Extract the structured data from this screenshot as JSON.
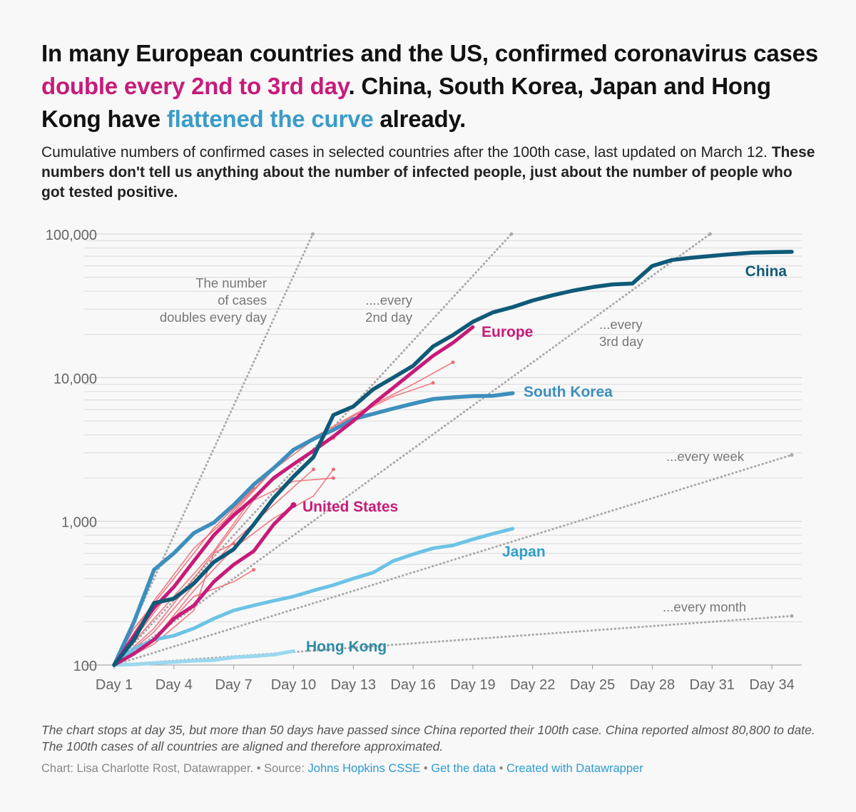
{
  "header": {
    "title_part1": "In many European countries and the US, confirmed coronavirus cases ",
    "title_highlight1": "double every 2nd to 3rd day",
    "title_part2": ". China, South Korea, Japan and Hong Kong have ",
    "title_highlight2": "flattened the curve",
    "title_part3": " already.",
    "subtitle_plain": "Cumulative numbers of confirmed cases in selected countries after the 100th case, last updated on March 12. ",
    "subtitle_bold": "These numbers don't tell us anything about the number of infected people, just about the number of people who got tested positive."
  },
  "colors": {
    "pink": "#c71b79",
    "pink_light": "#ee6b75",
    "china": "#0f5a78",
    "south_korea": "#3d8fbd",
    "japan": "#6cc3e6",
    "hong_kong": "#9ad8ef",
    "reference": "#aaaaaa",
    "grid": "#dadada"
  },
  "chart_data": {
    "type": "line",
    "x_scale": "linear",
    "y_scale": "log",
    "xlim": [
      1,
      35
    ],
    "ylim": [
      100,
      100000
    ],
    "x_ticks": [
      1,
      4,
      7,
      10,
      13,
      16,
      19,
      22,
      25,
      28,
      31,
      34
    ],
    "x_tick_labels": [
      "Day 1",
      "Day 4",
      "Day 7",
      "Day 10",
      "Day 13",
      "Day 16",
      "Day 19",
      "Day 22",
      "Day 25",
      "Day 28",
      "Day 31",
      "Day 34"
    ],
    "y_ticks": [
      100,
      1000,
      10000,
      100000
    ],
    "y_tick_labels": [
      "100",
      "1,000",
      "10,000",
      "100,000"
    ],
    "grid": true,
    "series": [
      {
        "name": "China",
        "color": "#0f5a78",
        "points": [
          [
            1,
            100
          ],
          [
            2,
            150
          ],
          [
            3,
            270
          ],
          [
            4,
            290
          ],
          [
            5,
            370
          ],
          [
            6,
            520
          ],
          [
            7,
            640
          ],
          [
            8,
            950
          ],
          [
            9,
            1450
          ],
          [
            10,
            2050
          ],
          [
            11,
            2800
          ],
          [
            12,
            5500
          ],
          [
            13,
            6300
          ],
          [
            14,
            8300
          ],
          [
            15,
            10000
          ],
          [
            16,
            12100
          ],
          [
            17,
            16500
          ],
          [
            18,
            19800
          ],
          [
            19,
            24500
          ],
          [
            20,
            28500
          ],
          [
            21,
            31000
          ],
          [
            22,
            34500
          ],
          [
            23,
            37500
          ],
          [
            24,
            40300
          ],
          [
            25,
            42700
          ],
          [
            26,
            44600
          ],
          [
            27,
            45200
          ],
          [
            28,
            60000
          ],
          [
            29,
            66000
          ],
          [
            30,
            68500
          ],
          [
            31,
            70500
          ],
          [
            32,
            72500
          ],
          [
            33,
            74200
          ],
          [
            34,
            74800
          ],
          [
            35,
            75200
          ]
        ]
      },
      {
        "name": "Europe",
        "color": "#c71b79",
        "points": [
          [
            1,
            100
          ],
          [
            2,
            160
          ],
          [
            3,
            250
          ],
          [
            4,
            350
          ],
          [
            5,
            530
          ],
          [
            6,
            800
          ],
          [
            7,
            1100
          ],
          [
            8,
            1450
          ],
          [
            9,
            2000
          ],
          [
            10,
            2500
          ],
          [
            11,
            3100
          ],
          [
            12,
            3900
          ],
          [
            13,
            5000
          ],
          [
            14,
            6600
          ],
          [
            15,
            8500
          ],
          [
            16,
            11000
          ],
          [
            17,
            14200
          ],
          [
            18,
            17500
          ],
          [
            19,
            22500
          ]
        ]
      },
      {
        "name": "South Korea",
        "color": "#3d8fbd",
        "points": [
          [
            1,
            100
          ],
          [
            2,
            200
          ],
          [
            3,
            460
          ],
          [
            4,
            600
          ],
          [
            5,
            830
          ],
          [
            6,
            980
          ],
          [
            7,
            1300
          ],
          [
            8,
            1800
          ],
          [
            9,
            2340
          ],
          [
            10,
            3150
          ],
          [
            11,
            3740
          ],
          [
            12,
            4330
          ],
          [
            13,
            5150
          ],
          [
            14,
            5600
          ],
          [
            15,
            6100
          ],
          [
            16,
            6600
          ],
          [
            17,
            7100
          ],
          [
            18,
            7300
          ],
          [
            19,
            7450
          ],
          [
            20,
            7480
          ],
          [
            21,
            7800
          ]
        ]
      },
      {
        "name": "United States",
        "color": "#c71b79",
        "points": [
          [
            1,
            100
          ],
          [
            2,
            120
          ],
          [
            3,
            150
          ],
          [
            4,
            210
          ],
          [
            5,
            260
          ],
          [
            6,
            380
          ],
          [
            7,
            500
          ],
          [
            8,
            620
          ],
          [
            9,
            950
          ],
          [
            10,
            1300
          ]
        ]
      },
      {
        "name": "Japan",
        "color": "#6cc3e6",
        "points": [
          [
            1,
            100
          ],
          [
            2,
            130
          ],
          [
            3,
            150
          ],
          [
            4,
            160
          ],
          [
            5,
            180
          ],
          [
            6,
            210
          ],
          [
            7,
            240
          ],
          [
            8,
            260
          ],
          [
            9,
            280
          ],
          [
            10,
            300
          ],
          [
            11,
            330
          ],
          [
            12,
            360
          ],
          [
            13,
            400
          ],
          [
            14,
            440
          ],
          [
            15,
            530
          ],
          [
            16,
            590
          ],
          [
            17,
            650
          ],
          [
            18,
            680
          ],
          [
            19,
            750
          ],
          [
            20,
            820
          ],
          [
            21,
            890
          ]
        ]
      },
      {
        "name": "Hong Kong",
        "color": "#9ad8ef",
        "points": [
          [
            1,
            100
          ],
          [
            2,
            101
          ],
          [
            3,
            103
          ],
          [
            4,
            105
          ],
          [
            5,
            107
          ],
          [
            6,
            108
          ],
          [
            7,
            113
          ],
          [
            8,
            115
          ],
          [
            9,
            118
          ],
          [
            10,
            125
          ]
        ]
      }
    ],
    "minor_series": [
      {
        "color": "#ee6b75",
        "points": [
          [
            1,
            100
          ],
          [
            3,
            280
          ],
          [
            5,
            650
          ],
          [
            7,
            1150
          ],
          [
            9,
            2300
          ],
          [
            11,
            3700
          ],
          [
            13,
            5400
          ],
          [
            15,
            7400
          ],
          [
            17,
            9200
          ]
        ]
      },
      {
        "color": "#ee6b75",
        "points": [
          [
            1,
            100
          ],
          [
            4,
            350
          ],
          [
            7,
            1200
          ],
          [
            10,
            3200
          ],
          [
            13,
            5500
          ],
          [
            16,
            9000
          ],
          [
            18,
            12800
          ]
        ]
      },
      {
        "color": "#ee6b75",
        "points": [
          [
            1,
            100
          ],
          [
            3,
            210
          ],
          [
            6,
            620
          ],
          [
            8,
            1500
          ],
          [
            10,
            2500
          ],
          [
            12,
            3800
          ]
        ]
      },
      {
        "color": "#ee6b75",
        "points": [
          [
            1,
            100
          ],
          [
            3,
            150
          ],
          [
            5,
            330
          ],
          [
            7,
            650
          ],
          [
            9,
            1050
          ],
          [
            11,
            1500
          ],
          [
            12,
            2300
          ]
        ]
      },
      {
        "color": "#ee6b75",
        "points": [
          [
            1,
            100
          ],
          [
            3,
            170
          ],
          [
            5,
            360
          ],
          [
            7,
            720
          ],
          [
            9,
            1300
          ],
          [
            11,
            2300
          ]
        ]
      },
      {
        "color": "#ee6b75",
        "points": [
          [
            1,
            100
          ],
          [
            3,
            180
          ],
          [
            6,
            600
          ],
          [
            8,
            1400
          ],
          [
            10,
            1900
          ],
          [
            12,
            2000
          ]
        ]
      },
      {
        "color": "#ee6b75",
        "points": [
          [
            1,
            100
          ],
          [
            3,
            140
          ],
          [
            5,
            240
          ],
          [
            6,
            600
          ],
          [
            7,
            700
          ]
        ]
      },
      {
        "color": "#ee6b75",
        "points": [
          [
            1,
            100
          ],
          [
            3,
            150
          ],
          [
            5,
            300
          ],
          [
            7,
            380
          ],
          [
            8,
            460
          ]
        ]
      },
      {
        "color": "#ee6b75",
        "points": [
          [
            1,
            100
          ],
          [
            2,
            180
          ],
          [
            4,
            400
          ],
          [
            6,
            900
          ],
          [
            8,
            1700
          ]
        ]
      }
    ],
    "reference_lines": [
      {
        "label": "The number of cases doubles every day",
        "doubling_days": 1
      },
      {
        "label": "....every 2nd day",
        "doubling_days": 2
      },
      {
        "label": "...every 3rd day",
        "doubling_days": 3
      },
      {
        "label": "...every week",
        "doubling_days": 7
      },
      {
        "label": "...every month",
        "doubling_days": 30
      }
    ],
    "annotations": {
      "doubles_every_day": [
        "The number",
        "of cases",
        "doubles every day"
      ],
      "every_2nd_day": [
        "....every",
        "2nd day"
      ],
      "every_3rd_day": [
        "...every",
        "3rd day"
      ],
      "every_week": "...every week",
      "every_month": "...every month"
    },
    "series_labels": {
      "china": "China",
      "europe": "Europe",
      "south_korea": "South Korea",
      "united_states": "United States",
      "japan": "Japan",
      "hong_kong": "Hong Kong"
    }
  },
  "notes": {
    "note": "The chart stops at day 35, but more than 50 days have passed since China reported their 100th case. China reported almost 80,800 to date. The 100th cases of all countries are aligned and therefore approximated."
  },
  "footer": {
    "credit": "Chart: Lisa Charlotte Rost, Datawrapper. • Source: ",
    "source_link": "Johns Hopkins CSSE",
    "sep1": " • ",
    "data_link": "Get the data",
    "sep2": " • ",
    "created_link": "Created with Datawrapper"
  }
}
